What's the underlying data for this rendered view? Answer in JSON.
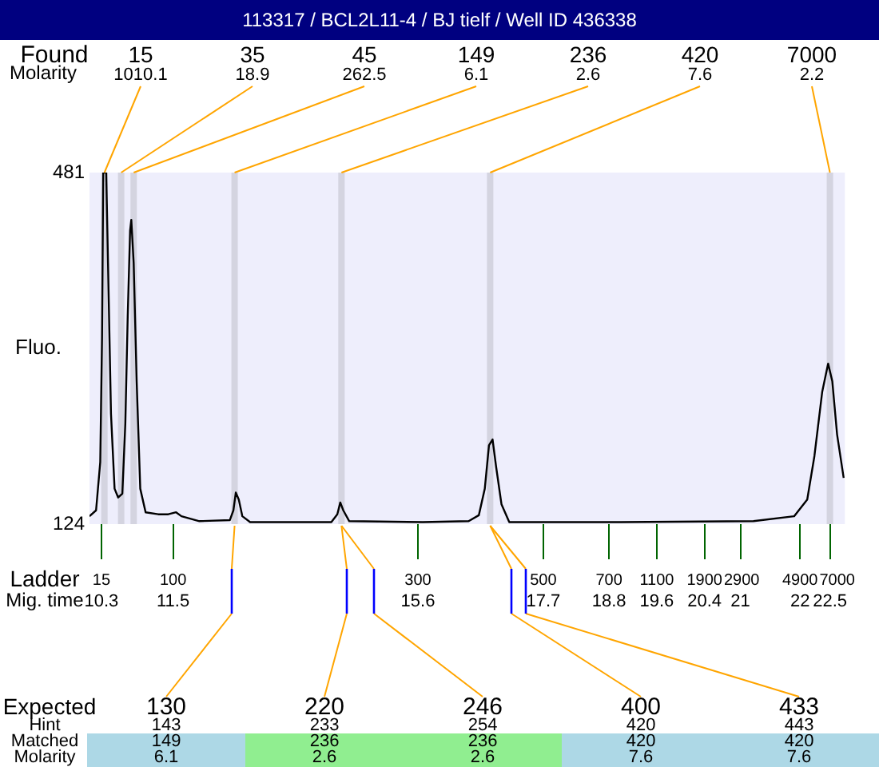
{
  "chart_data": {
    "type": "line",
    "title": "113317 / BCL2L11-4 / BJ tielf / Well ID 436338",
    "ylabel": "Fluo.",
    "x": [
      10.1,
      10.21,
      10.28,
      10.31,
      10.33,
      10.38,
      10.41,
      10.46,
      10.52,
      10.58,
      10.65,
      10.7,
      10.74,
      10.78,
      10.8,
      10.84,
      10.89,
      10.95,
      11.04,
      11.25,
      11.42,
      11.55,
      11.64,
      11.94,
      12.45,
      12.51,
      12.55,
      12.6,
      12.66,
      12.79,
      14.15,
      14.25,
      14.3,
      14.35,
      14.45,
      15.68,
      16.45,
      16.62,
      16.72,
      16.79,
      16.85,
      16.91,
      17.0,
      17.13,
      19.0,
      21.22,
      21.9,
      22.12,
      22.24,
      22.37,
      22.47,
      22.54,
      22.62,
      22.73
    ],
    "series": [
      {
        "color": "#000000",
        "values": [
          132,
          138,
          187,
          313,
          481,
          481,
          389,
          236,
          160,
          151,
          155,
          226,
          335,
          422,
          433,
          389,
          269,
          160,
          136,
          134,
          134,
          136,
          132,
          127,
          128,
          138,
          156,
          149,
          132,
          126,
          126,
          134,
          146,
          138,
          127,
          126,
          127,
          133,
          160,
          204,
          210,
          182,
          144,
          126,
          126,
          127,
          132,
          149,
          193,
          258,
          287,
          269,
          215,
          171
        ]
      }
    ],
    "xlim": [
      10.1,
      22.75
    ],
    "xticks": [
      10.3,
      11.5,
      15.6,
      17.7,
      18.8,
      19.6,
      20.4,
      21,
      22,
      22.5
    ],
    "ylim": [
      124,
      481
    ],
    "yticks": [
      124,
      481
    ],
    "grid": false,
    "legend": false,
    "marker": "none",
    "line_style": "solid",
    "ref_lines": [
      {
        "axis": "x",
        "value": 10.35,
        "color": "#d4d4e0"
      },
      {
        "axis": "x",
        "value": 10.63,
        "color": "#d4d4e0"
      },
      {
        "axis": "x",
        "value": 10.84,
        "color": "#d4d4e0"
      },
      {
        "axis": "x",
        "value": 12.53,
        "color": "#d4d4e0"
      },
      {
        "axis": "x",
        "value": 14.32,
        "color": "#d4d4e0"
      },
      {
        "axis": "x",
        "value": 16.81,
        "color": "#d4d4e0"
      },
      {
        "axis": "x",
        "value": 22.5,
        "color": "#d4d4e0"
      }
    ],
    "annotations": [
      "Found",
      "Molarity",
      "Ladder",
      "Mig. time",
      "Expected",
      "Hint",
      "Matched",
      "Molarity",
      "15",
      "100",
      "300",
      "500",
      "700",
      "1100",
      "1900",
      "2900",
      "4900",
      "7000",
      "130",
      "220",
      "246",
      "400",
      "433",
      "143",
      "233",
      "254",
      "420",
      "443",
      "149",
      "236",
      "236",
      "420",
      "420",
      "6.1",
      "2.6",
      "2.6",
      "7.6",
      "7.6",
      {
        "text": "15",
        "x": 10.35,
        "y": 481
      },
      {
        "text": "35",
        "x": 10.63,
        "y": 481
      },
      {
        "text": "45",
        "x": 10.84,
        "y": 481
      },
      {
        "text": "149",
        "x": 12.53,
        "y": 481
      },
      {
        "text": "236",
        "x": 14.32,
        "y": 481
      },
      {
        "text": "420",
        "x": 16.81,
        "y": 481
      },
      {
        "text": "7000",
        "x": 22.5,
        "y": 481
      },
      {
        "text": "1010.1",
        "x": 10.35,
        "y": 481
      },
      {
        "text": "18.9",
        "x": 10.63,
        "y": 481
      },
      {
        "text": "262.5",
        "x": 10.84,
        "y": 481
      },
      {
        "text": "6.1",
        "x": 12.53,
        "y": 481
      },
      {
        "text": "2.6",
        "x": 14.32,
        "y": 481
      },
      {
        "text": "7.6",
        "x": 16.81,
        "y": 481
      },
      {
        "text": "2.2",
        "x": 22.5,
        "y": 481
      }
    ]
  }
}
